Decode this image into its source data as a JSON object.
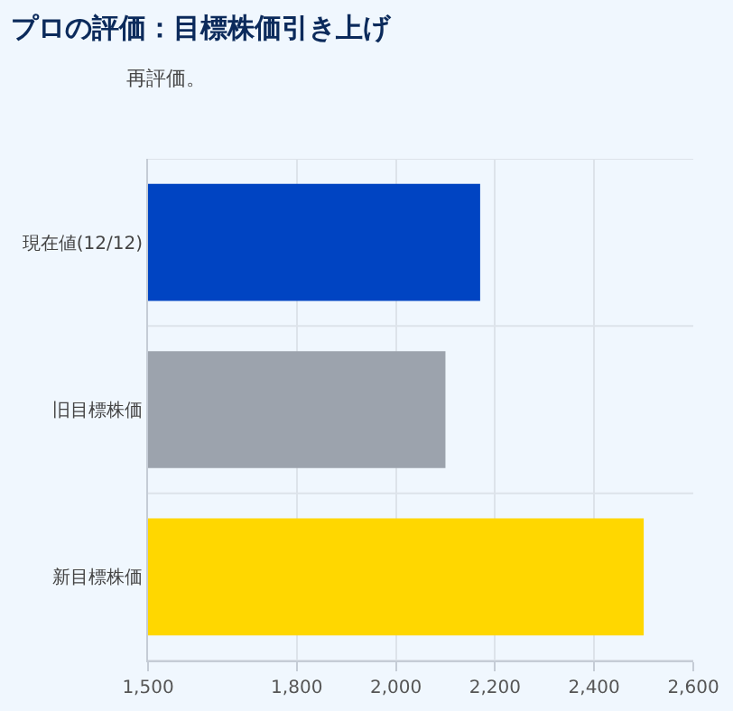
{
  "chart_data": {
    "type": "bar",
    "orientation": "horizontal",
    "title": "プロの評価：目標株価引き上げ",
    "subtitle": "再評価。",
    "categories": [
      "現在値(12/12)",
      "旧目標株価",
      "新目標株価"
    ],
    "values": [
      2170,
      2100,
      2500
    ],
    "colors": [
      "#0044c2",
      "#9ca3ad",
      "#ffd700"
    ],
    "xlim": [
      1500,
      2600
    ],
    "xticks": [
      {
        "value": 1500,
        "label": "1,500"
      },
      {
        "value": 1800,
        "label": "1,800"
      },
      {
        "value": 2000,
        "label": "2,000"
      },
      {
        "value": 2200,
        "label": "2,200"
      },
      {
        "value": 2400,
        "label": "2,400"
      },
      {
        "value": 2600,
        "label": "2,600"
      }
    ],
    "grid": true
  }
}
